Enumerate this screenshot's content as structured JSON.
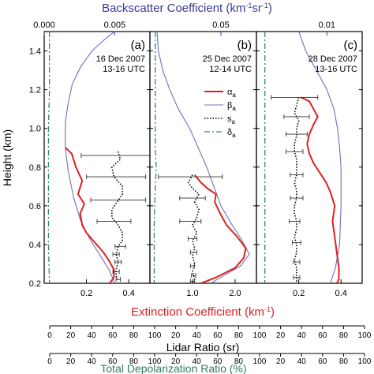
{
  "colors": {
    "alpha": "#e02020",
    "beta": "#7070b8",
    "s": "#000000",
    "delta": "#2e8b6e",
    "top_axis": "#3a3a9a",
    "extinction_title": "#e02020",
    "depol_title": "#2e7d5e",
    "frame": "#000000"
  },
  "chart_data": {
    "type": "line",
    "ylabel": "Height (km)",
    "ylim": [
      0.2,
      1.5
    ],
    "y_ticks": [
      "0.2",
      "0.4",
      "0.6",
      "0.8",
      "1.0",
      "1.2",
      "1.4"
    ],
    "top_axis_title": "Backscatter Coefficient (km",
    "top_axis_title_sup1": "-1",
    "top_axis_title_mid": "sr",
    "top_axis_title_sup2": "-1",
    "top_axis_title_end": ")",
    "bottom_axis_title": "Extinction Coefficient (km",
    "bottom_axis_title_sup": "-1",
    "bottom_axis_title_end": ")",
    "lidar_ratio_title": "Lidar Ratio (sr)",
    "lidar_ratio_ticks": [
      "0",
      "20",
      "40",
      "60",
      "80",
      "100",
      "20",
      "40",
      "60",
      "80",
      "100",
      "20",
      "40",
      "60",
      "80",
      "100"
    ],
    "depol_title": "Total Depolarization Ratio (%)",
    "depol_ticks": [
      "0",
      "20",
      "40",
      "60",
      "80",
      "100",
      "20",
      "40",
      "60",
      "80",
      "100",
      "20",
      "40",
      "60",
      "80",
      "100"
    ],
    "legend": [
      {
        "sym": "α",
        "sub": "a",
        "style": "alpha"
      },
      {
        "sym": "β",
        "sub": "a",
        "style": "beta"
      },
      {
        "sym": "s",
        "sub": "a",
        "style": "s"
      },
      {
        "sym": "δ",
        "sub": "a",
        "style": "delta"
      }
    ],
    "panels": [
      {
        "label": "(a)",
        "date": "16 Dec 2007",
        "time": "13-16 UTC",
        "xlim_ext": [
          0,
          0.5
        ],
        "ext_ticks": [
          0.2,
          0.4
        ],
        "ext_tick_labels": [
          "0.2",
          "0.4"
        ],
        "xlim_bsc": [
          0,
          0.0075
        ],
        "bsc_ticks": [
          0,
          0.005
        ],
        "bsc_tick_labels": [
          "0.000",
          "0.005"
        ],
        "alpha": [
          [
            0.1,
            0.9
          ],
          [
            0.13,
            0.87
          ],
          [
            0.15,
            0.8
          ],
          [
            0.18,
            0.73
          ],
          [
            0.16,
            0.66
          ],
          [
            0.19,
            0.61
          ],
          [
            0.17,
            0.56
          ],
          [
            0.18,
            0.5
          ],
          [
            0.2,
            0.46
          ],
          [
            0.24,
            0.41
          ],
          [
            0.28,
            0.36
          ],
          [
            0.31,
            0.31
          ],
          [
            0.33,
            0.27
          ],
          [
            0.33,
            0.23
          ],
          [
            0.31,
            0.2
          ]
        ],
        "beta": [
          [
            0.005,
            1.5
          ],
          [
            0.0043,
            1.46
          ],
          [
            0.0034,
            1.4
          ],
          [
            0.0026,
            1.32
          ],
          [
            0.002,
            1.23
          ],
          [
            0.0017,
            1.13
          ],
          [
            0.0015,
            1.03
          ],
          [
            0.0015,
            0.9
          ],
          [
            0.0017,
            0.78
          ],
          [
            0.0021,
            0.64
          ],
          [
            0.0026,
            0.52
          ],
          [
            0.0033,
            0.42
          ],
          [
            0.004,
            0.34
          ],
          [
            0.0046,
            0.27
          ],
          [
            0.0049,
            0.22
          ],
          [
            0.005,
            0.2
          ]
        ],
        "s": [
          [
            70,
            0.88
          ],
          [
            72,
            0.84
          ],
          [
            64,
            0.8
          ],
          [
            66,
            0.75
          ],
          [
            74,
            0.7
          ],
          [
            74,
            0.66
          ],
          [
            69,
            0.62
          ],
          [
            64,
            0.58
          ],
          [
            64,
            0.54
          ],
          [
            70,
            0.5
          ],
          [
            74,
            0.46
          ],
          [
            74,
            0.42
          ],
          [
            70,
            0.39
          ],
          [
            68,
            0.35
          ],
          [
            70,
            0.31
          ],
          [
            68,
            0.27
          ],
          [
            68,
            0.24
          ],
          [
            70,
            0.21
          ]
        ],
        "s_err": [
          [
            73,
            0.86,
            38
          ],
          [
            68,
            0.75,
            28
          ],
          [
            70,
            0.63,
            26
          ],
          [
            66,
            0.52,
            16
          ],
          [
            72,
            0.39,
            5
          ],
          [
            68,
            0.35,
            3
          ],
          [
            70,
            0.31,
            3
          ],
          [
            68,
            0.26,
            3
          ],
          [
            70,
            0.22,
            2
          ]
        ],
        "delta": [
          [
            5,
            1.5
          ],
          [
            5,
            1.35
          ],
          [
            5,
            1.2
          ],
          [
            4,
            1.0
          ],
          [
            4,
            0.8
          ],
          [
            4,
            0.6
          ],
          [
            4,
            0.4
          ],
          [
            5,
            0.2
          ]
        ]
      },
      {
        "label": "(b)",
        "date": "25 Dec 2007",
        "time": "12-14 UTC",
        "xlim_ext": [
          0,
          2.5
        ],
        "ext_ticks": [
          1.0,
          2.0
        ],
        "ext_tick_labels": [
          "1.0",
          "2.0"
        ],
        "xlim_bsc": [
          0,
          0.075
        ],
        "bsc_ticks": [
          0.05
        ],
        "bsc_tick_labels": [
          "0.05"
        ],
        "alpha": [
          [
            1.05,
            0.76
          ],
          [
            1.2,
            0.72
          ],
          [
            1.35,
            0.69
          ],
          [
            1.55,
            0.66
          ],
          [
            1.52,
            0.62
          ],
          [
            1.65,
            0.56
          ],
          [
            1.8,
            0.5
          ],
          [
            2.05,
            0.44
          ],
          [
            2.25,
            0.38
          ],
          [
            2.2,
            0.33
          ],
          [
            2.0,
            0.28
          ],
          [
            1.55,
            0.23
          ],
          [
            1.2,
            0.2
          ]
        ],
        "beta": [
          [
            0.005,
            1.5
          ],
          [
            0.006,
            1.4
          ],
          [
            0.009,
            1.3
          ],
          [
            0.014,
            1.2
          ],
          [
            0.02,
            1.1
          ],
          [
            0.028,
            1.0
          ],
          [
            0.034,
            0.9
          ],
          [
            0.04,
            0.8
          ],
          [
            0.045,
            0.7
          ],
          [
            0.05,
            0.6
          ],
          [
            0.058,
            0.5
          ],
          [
            0.065,
            0.42
          ],
          [
            0.07,
            0.35
          ],
          [
            0.064,
            0.29
          ],
          [
            0.052,
            0.24
          ],
          [
            0.043,
            0.2
          ]
        ],
        "s": [
          [
            40,
            0.76
          ],
          [
            36,
            0.72
          ],
          [
            40,
            0.69
          ],
          [
            46,
            0.66
          ],
          [
            42,
            0.62
          ],
          [
            46,
            0.58
          ],
          [
            44,
            0.54
          ],
          [
            40,
            0.5
          ],
          [
            44,
            0.46
          ],
          [
            40,
            0.42
          ],
          [
            42,
            0.38
          ],
          [
            40,
            0.34
          ],
          [
            42,
            0.3
          ],
          [
            40,
            0.26
          ],
          [
            42,
            0.22
          ],
          [
            40,
            0.2
          ]
        ],
        "s_err": [
          [
            38,
            0.75,
            30
          ],
          [
            40,
            0.64,
            12
          ],
          [
            38,
            0.52,
            10
          ],
          [
            40,
            0.43,
            4
          ],
          [
            41,
            0.36,
            3
          ],
          [
            40,
            0.29,
            2
          ],
          [
            41,
            0.24,
            2
          ],
          [
            40,
            0.21,
            2
          ]
        ],
        "delta": [
          [
            5,
            1.5
          ],
          [
            5,
            1.3
          ],
          [
            5,
            1.1
          ],
          [
            5,
            0.9
          ],
          [
            6,
            0.8
          ],
          [
            5,
            0.7
          ],
          [
            4,
            0.5
          ],
          [
            4,
            0.3
          ],
          [
            4,
            0.2
          ]
        ]
      },
      {
        "label": "(c)",
        "date": "28 Dec 2007",
        "time": "13-16 UTC",
        "xlim_ext": [
          0,
          0.5
        ],
        "ext_ticks": [
          0.2,
          0.4
        ],
        "ext_tick_labels": [
          "0.2",
          "0.4"
        ],
        "xlim_bsc": [
          0,
          0.015
        ],
        "bsc_ticks": [
          0.01
        ],
        "bsc_tick_labels": [
          "0.01"
        ],
        "alpha": [
          [
            0.21,
            1.16
          ],
          [
            0.25,
            1.14
          ],
          [
            0.27,
            1.1
          ],
          [
            0.29,
            1.06
          ],
          [
            0.27,
            1.02
          ],
          [
            0.25,
            0.97
          ],
          [
            0.24,
            0.92
          ],
          [
            0.25,
            0.87
          ],
          [
            0.27,
            0.82
          ],
          [
            0.3,
            0.77
          ],
          [
            0.33,
            0.72
          ],
          [
            0.35,
            0.67
          ],
          [
            0.37,
            0.6
          ],
          [
            0.36,
            0.52
          ],
          [
            0.37,
            0.44
          ],
          [
            0.38,
            0.36
          ],
          [
            0.39,
            0.28
          ],
          [
            0.39,
            0.22
          ],
          [
            0.38,
            0.2
          ]
        ],
        "beta": [
          [
            0.006,
            1.5
          ],
          [
            0.007,
            1.4
          ],
          [
            0.0085,
            1.3
          ],
          [
            0.01,
            1.2
          ],
          [
            0.011,
            1.1
          ],
          [
            0.0115,
            1.0
          ],
          [
            0.0118,
            0.9
          ],
          [
            0.012,
            0.8
          ],
          [
            0.012,
            0.6
          ],
          [
            0.0118,
            0.4
          ],
          [
            0.0112,
            0.28
          ],
          [
            0.0105,
            0.2
          ]
        ],
        "s": [
          [
            40,
            1.16
          ],
          [
            38,
            1.12
          ],
          [
            36,
            1.08
          ],
          [
            40,
            1.04
          ],
          [
            38,
            1.0
          ],
          [
            38,
            0.96
          ],
          [
            36,
            0.92
          ],
          [
            36,
            0.88
          ],
          [
            38,
            0.84
          ],
          [
            38,
            0.8
          ],
          [
            38,
            0.76
          ],
          [
            36,
            0.72
          ],
          [
            38,
            0.68
          ],
          [
            38,
            0.64
          ],
          [
            36,
            0.6
          ],
          [
            36,
            0.56
          ],
          [
            38,
            0.52
          ],
          [
            38,
            0.48
          ],
          [
            36,
            0.44
          ],
          [
            38,
            0.4
          ],
          [
            38,
            0.36
          ],
          [
            36,
            0.32
          ],
          [
            38,
            0.28
          ],
          [
            38,
            0.24
          ],
          [
            38,
            0.2
          ]
        ],
        "s_err": [
          [
            36,
            1.16,
            22
          ],
          [
            38,
            1.06,
            12
          ],
          [
            38,
            0.97,
            10
          ],
          [
            36,
            0.88,
            8
          ],
          [
            38,
            0.76,
            6
          ],
          [
            38,
            0.64,
            6
          ],
          [
            36,
            0.52,
            5
          ],
          [
            38,
            0.41,
            4
          ],
          [
            38,
            0.31,
            3
          ],
          [
            38,
            0.23,
            3
          ]
        ],
        "delta": [
          [
            8,
            1.5
          ],
          [
            8,
            1.3
          ],
          [
            8,
            1.1
          ],
          [
            8,
            0.9
          ],
          [
            8,
            0.7
          ],
          [
            8,
            0.5
          ],
          [
            8,
            0.3
          ],
          [
            8,
            0.2
          ]
        ]
      }
    ]
  }
}
